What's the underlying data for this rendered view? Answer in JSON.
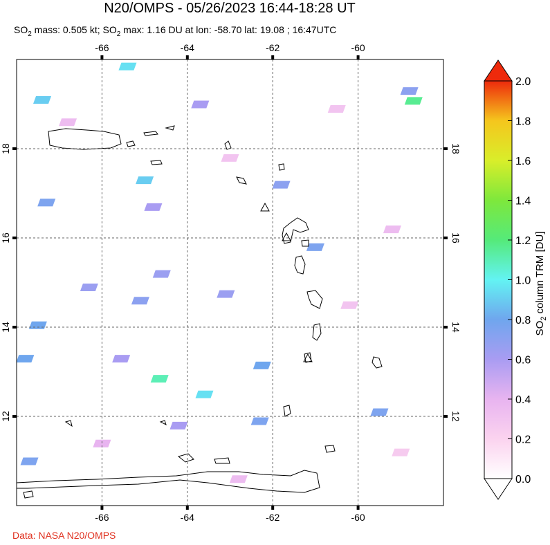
{
  "title": "N20/OMPS - 05/26/2023 16:44-18:28 UT",
  "subtitle": [
    "SO",
    "2",
    " mass: 0.505 kt; SO",
    "2",
    " max: 1.16 DU at lon: -58.70 lat: 19.08 ; 16:47UTC"
  ],
  "map": {
    "lonlim": [
      -68,
      -58
    ],
    "latlim": [
      10,
      20
    ],
    "lonticks": [
      -66,
      -64,
      -62,
      -60
    ],
    "latticks": [
      12,
      14,
      16,
      18
    ],
    "pixels": [
      {
        "lon": -58.7,
        "lat": 19.08,
        "value": 1.16
      },
      {
        "lon": -65.4,
        "lat": 19.85,
        "value": 0.95
      },
      {
        "lon": -67.4,
        "lat": 19.1,
        "value": 0.9
      },
      {
        "lon": -65.0,
        "lat": 17.3,
        "value": 0.9
      },
      {
        "lon": -64.65,
        "lat": 12.85,
        "value": 1.1
      },
      {
        "lon": -63.6,
        "lat": 12.5,
        "value": 0.95
      },
      {
        "lon": -67.5,
        "lat": 14.05,
        "value": 0.8
      },
      {
        "lon": -67.3,
        "lat": 16.8,
        "value": 0.75
      },
      {
        "lon": -62.25,
        "lat": 13.15,
        "value": 0.8
      },
      {
        "lon": -61.0,
        "lat": 15.8,
        "value": 0.75
      },
      {
        "lon": -59.5,
        "lat": 12.1,
        "value": 0.75
      },
      {
        "lon": -64.6,
        "lat": 15.2,
        "value": 0.65
      },
      {
        "lon": -64.8,
        "lat": 16.7,
        "value": 0.6
      },
      {
        "lon": -63.7,
        "lat": 19.0,
        "value": 0.6
      },
      {
        "lon": -65.55,
        "lat": 13.3,
        "value": 0.6
      },
      {
        "lon": -65.1,
        "lat": 14.6,
        "value": 0.7
      },
      {
        "lon": -66.3,
        "lat": 14.9,
        "value": 0.65
      },
      {
        "lon": -61.8,
        "lat": 17.2,
        "value": 0.7
      },
      {
        "lon": -58.8,
        "lat": 19.3,
        "value": 0.7
      },
      {
        "lon": -62.3,
        "lat": 11.9,
        "value": 0.75
      },
      {
        "lon": -67.8,
        "lat": 13.3,
        "value": 0.8
      },
      {
        "lon": -67.7,
        "lat": 11.0,
        "value": 0.75
      },
      {
        "lon": -64.2,
        "lat": 11.8,
        "value": 0.6
      },
      {
        "lon": -63.1,
        "lat": 14.75,
        "value": 0.65
      },
      {
        "lon": -66.8,
        "lat": 18.6,
        "value": 0.35
      },
      {
        "lon": -63.0,
        "lat": 17.8,
        "value": 0.3
      },
      {
        "lon": -60.5,
        "lat": 18.9,
        "value": 0.3
      },
      {
        "lon": -59.2,
        "lat": 16.2,
        "value": 0.35
      },
      {
        "lon": -60.2,
        "lat": 14.5,
        "value": 0.3
      },
      {
        "lon": -62.8,
        "lat": 10.6,
        "value": 0.35
      },
      {
        "lon": -66.0,
        "lat": 11.4,
        "value": 0.4
      },
      {
        "lon": -59.0,
        "lat": 11.2,
        "value": 0.25
      }
    ]
  },
  "colorbar": {
    "label": [
      "SO",
      "2",
      " column TRM [DU]"
    ],
    "lim": [
      0,
      2
    ],
    "ticks": [
      {
        "value": 0,
        "label": "0.0"
      },
      {
        "value": 0.2,
        "label": "0.2"
      },
      {
        "value": 0.4,
        "label": "0.4"
      },
      {
        "value": 0.6,
        "label": "0.6"
      },
      {
        "value": 0.8,
        "label": "0.8"
      },
      {
        "value": 1,
        "label": "1.0"
      },
      {
        "value": 1.2,
        "label": "1.2"
      },
      {
        "value": 1.4,
        "label": "1.4"
      },
      {
        "value": 1.6,
        "label": "1.6"
      },
      {
        "value": 1.8,
        "label": "1.8"
      },
      {
        "value": 2,
        "label": "2.0"
      }
    ],
    "colorscale": [
      [
        0,
        "#ffffff"
      ],
      [
        0.2,
        "#fbd3ef"
      ],
      [
        0.4,
        "#e8b4f0"
      ],
      [
        0.6,
        "#a99cf2"
      ],
      [
        0.8,
        "#6fa6ee"
      ],
      [
        1.0,
        "#63f3f3"
      ],
      [
        1.2,
        "#55ea7a"
      ],
      [
        1.4,
        "#7ee83c"
      ],
      [
        1.6,
        "#d9ee2a"
      ],
      [
        1.8,
        "#f5c61d"
      ],
      [
        2.0,
        "#ee2a0c"
      ]
    ]
  },
  "credit": "Data: NASA N20/OMPS"
}
